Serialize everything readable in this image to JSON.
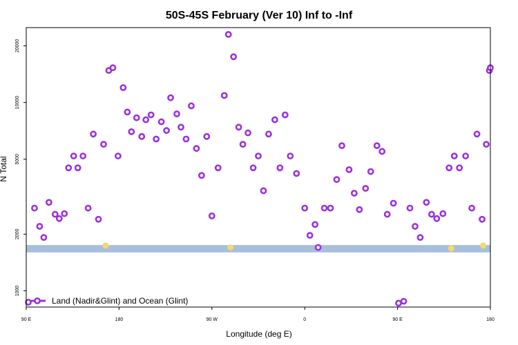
{
  "chart_data": {
    "type": "scatter",
    "title": "50S-45S February (Ver 10)   Inf to -Inf",
    "xlabel": "Longitude (deg E)",
    "ylabel": "N Total",
    "y_scale": "log",
    "ylim": [
      820,
      25000
    ],
    "x_ticks": [
      {
        "value": 90,
        "label": "90 E"
      },
      {
        "value": 180,
        "label": "180"
      },
      {
        "value": 270,
        "label": "90 W"
      },
      {
        "value": 360,
        "label": "0"
      },
      {
        "value": 450,
        "label": "90 E"
      },
      {
        "value": 540,
        "label": "180"
      }
    ],
    "xlim": [
      90,
      540
    ],
    "y_ticks": [
      1000,
      2000,
      5000,
      10000,
      20000
    ],
    "grid": false,
    "band": {
      "y_low": 1600,
      "y_high": 1750,
      "color": "#a7bedd"
    },
    "legend": {
      "position": "bottom-left",
      "label": "Land (Nadir&Glint) and Ocean (Glint)"
    },
    "series": [
      {
        "name": "Land (Nadir&Glint) and Ocean (Glint)",
        "color": "#9b30e0",
        "points": [
          [
            92,
            870
          ],
          [
            98,
            2750
          ],
          [
            103,
            2200
          ],
          [
            107,
            1920
          ],
          [
            112,
            2950
          ],
          [
            118,
            2550
          ],
          [
            122,
            2420
          ],
          [
            127,
            2570
          ],
          [
            131,
            4500
          ],
          [
            136,
            5200
          ],
          [
            140,
            4500
          ],
          [
            145,
            5200
          ],
          [
            150,
            2750
          ],
          [
            155,
            6800
          ],
          [
            160,
            2400
          ],
          [
            165,
            6000
          ],
          [
            170,
            14800
          ],
          [
            174,
            15300
          ],
          [
            179,
            5200
          ],
          [
            184,
            12000
          ],
          [
            188,
            8900
          ],
          [
            192,
            7000
          ],
          [
            197,
            8300
          ],
          [
            202,
            6600
          ],
          [
            206,
            8100
          ],
          [
            211,
            8600
          ],
          [
            216,
            6400
          ],
          [
            221,
            7900
          ],
          [
            226,
            7100
          ],
          [
            230,
            10600
          ],
          [
            236,
            8700
          ],
          [
            240,
            7400
          ],
          [
            245,
            6400
          ],
          [
            250,
            9600
          ],
          [
            255,
            5700
          ],
          [
            260,
            4100
          ],
          [
            265,
            6600
          ],
          [
            270,
            2500
          ],
          [
            276,
            4500
          ],
          [
            282,
            10900
          ],
          [
            286,
            23000
          ],
          [
            291,
            17500
          ],
          [
            296,
            7400
          ],
          [
            300,
            6000
          ],
          [
            305,
            6900
          ],
          [
            310,
            4500
          ],
          [
            315,
            5200
          ],
          [
            320,
            3400
          ],
          [
            325,
            6800
          ],
          [
            331,
            8100
          ],
          [
            336,
            4500
          ],
          [
            341,
            8600
          ],
          [
            346,
            5200
          ],
          [
            352,
            4200
          ],
          [
            360,
            2750
          ],
          [
            365,
            1970
          ],
          [
            370,
            2250
          ],
          [
            373,
            1700
          ],
          [
            379,
            2750
          ],
          [
            385,
            2750
          ],
          [
            391,
            3900
          ],
          [
            396,
            5900
          ],
          [
            403,
            4400
          ],
          [
            408,
            3300
          ],
          [
            413,
            2700
          ],
          [
            419,
            3500
          ],
          [
            424,
            4300
          ],
          [
            430,
            5900
          ],
          [
            435,
            5500
          ],
          [
            440,
            2550
          ],
          [
            446,
            2920
          ],
          [
            451,
            860
          ],
          [
            456,
            880
          ],
          [
            462,
            2750
          ],
          [
            467,
            2200
          ],
          [
            472,
            1920
          ],
          [
            478,
            2950
          ],
          [
            483,
            2550
          ],
          [
            488,
            2420
          ],
          [
            494,
            2570
          ],
          [
            500,
            4500
          ],
          [
            505,
            5200
          ],
          [
            510,
            4500
          ],
          [
            516,
            5200
          ],
          [
            522,
            2750
          ],
          [
            527,
            6800
          ],
          [
            532,
            2400
          ],
          [
            536,
            6000
          ],
          [
            539,
            14800
          ],
          [
            540,
            15300
          ]
        ]
      },
      {
        "name": "",
        "color": "#f5d76e",
        "points": [
          [
            167,
            1740
          ],
          [
            288,
            1700
          ],
          [
            502,
            1680
          ],
          [
            533,
            1740
          ]
        ]
      }
    ]
  }
}
